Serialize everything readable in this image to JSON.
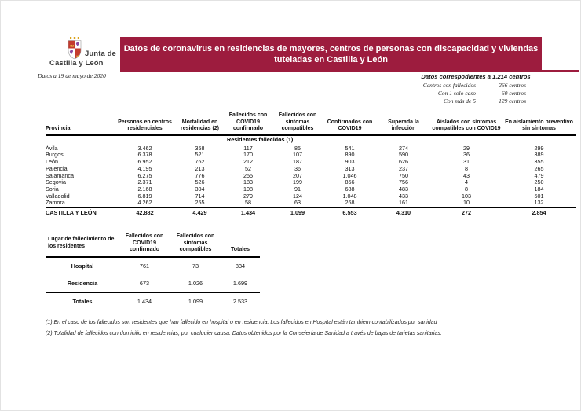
{
  "colors": {
    "accent": "#9d1c3e",
    "shield_red": "#c43b2e",
    "shield_purple": "#8a4ba0",
    "crown_gold": "#d9a31e"
  },
  "logo": {
    "line1": "Junta de",
    "line2": "Castilla y León"
  },
  "date_note": "Datos a 19 de mayo de 2020",
  "title": {
    "line1": "Datos de coronavirus en residencias de mayores, centros de personas con discapacidad y viviendas",
    "line2": "tuteladas en Castilla y León"
  },
  "centers_info": {
    "header": "Datos correspodientes a 1.214 centros",
    "rows": [
      {
        "label": "Centros con fallecidos",
        "value": "266 centros"
      },
      {
        "label": "Con 1 solo caso",
        "value": "60 centros"
      },
      {
        "label": "Con más de 5",
        "value": "129 centros"
      }
    ]
  },
  "main_table": {
    "columns": [
      "Provincia",
      "Personas en centros residenciales",
      "Mortalidad en residencias (2)",
      "Fallecidos con COVID19 confirmado",
      "Fallecidos con síntomas compatibles",
      "Confirmados con COVID19",
      "Superada la infección",
      "Aislados con síntomas compatibles con COVID19",
      "En aislamiento preventivo sin síntomas"
    ],
    "subheader": "Residentes fallecidos (1)",
    "rows": [
      [
        "Ávila",
        "3.462",
        "358",
        "117",
        "85",
        "541",
        "274",
        "29",
        "299"
      ],
      [
        "Burgos",
        "6.378",
        "521",
        "170",
        "107",
        "890",
        "590",
        "36",
        "389"
      ],
      [
        "León",
        "6.952",
        "762",
        "212",
        "187",
        "903",
        "626",
        "31",
        "355"
      ],
      [
        "Palencia",
        "4.195",
        "213",
        "52",
        "36",
        "313",
        "237",
        "8",
        "265"
      ],
      [
        "Salamanca",
        "6.275",
        "776",
        "255",
        "207",
        "1.046",
        "750",
        "43",
        "479"
      ],
      [
        "Segovia",
        "2.371",
        "526",
        "183",
        "199",
        "856",
        "756",
        "4",
        "250"
      ],
      [
        "Soria",
        "2.168",
        "304",
        "108",
        "91",
        "688",
        "483",
        "8",
        "184"
      ],
      [
        "Valladolid",
        "6.819",
        "714",
        "279",
        "124",
        "1.048",
        "433",
        "103",
        "501"
      ],
      [
        "Zamora",
        "4.262",
        "255",
        "58",
        "63",
        "268",
        "161",
        "10",
        "132"
      ]
    ],
    "total_row": [
      "CASTILLA Y LEÓN",
      "42.882",
      "4.429",
      "1.434",
      "1.099",
      "6.553",
      "4.310",
      "272",
      "2.854"
    ]
  },
  "location_table": {
    "columns": [
      "Lugar de fallecimiento de los residentes",
      "Fallecidos con COVID19 confirmado",
      "Fallecidos con síntomas compatibles",
      "Totales"
    ],
    "rows": [
      [
        "Hospital",
        "761",
        "73",
        "834"
      ],
      [
        "Residencia",
        "673",
        "1.026",
        "1.699"
      ]
    ],
    "total_row": [
      "Totales",
      "1.434",
      "1.099",
      "2.533"
    ]
  },
  "footnotes": [
    "(1) En el caso de los fallecidos son residentes que han fallecido en hospital o en residencia. Los fallecidos en Hospital están tambiem contabilizados por sanidad",
    "(2) Totalidad de fallecidos con domicilio en residencias, por cualquier causa. Datos obtenidos por la Consejería de Sanidad a través de bajas de tarjetas sanitarias."
  ]
}
